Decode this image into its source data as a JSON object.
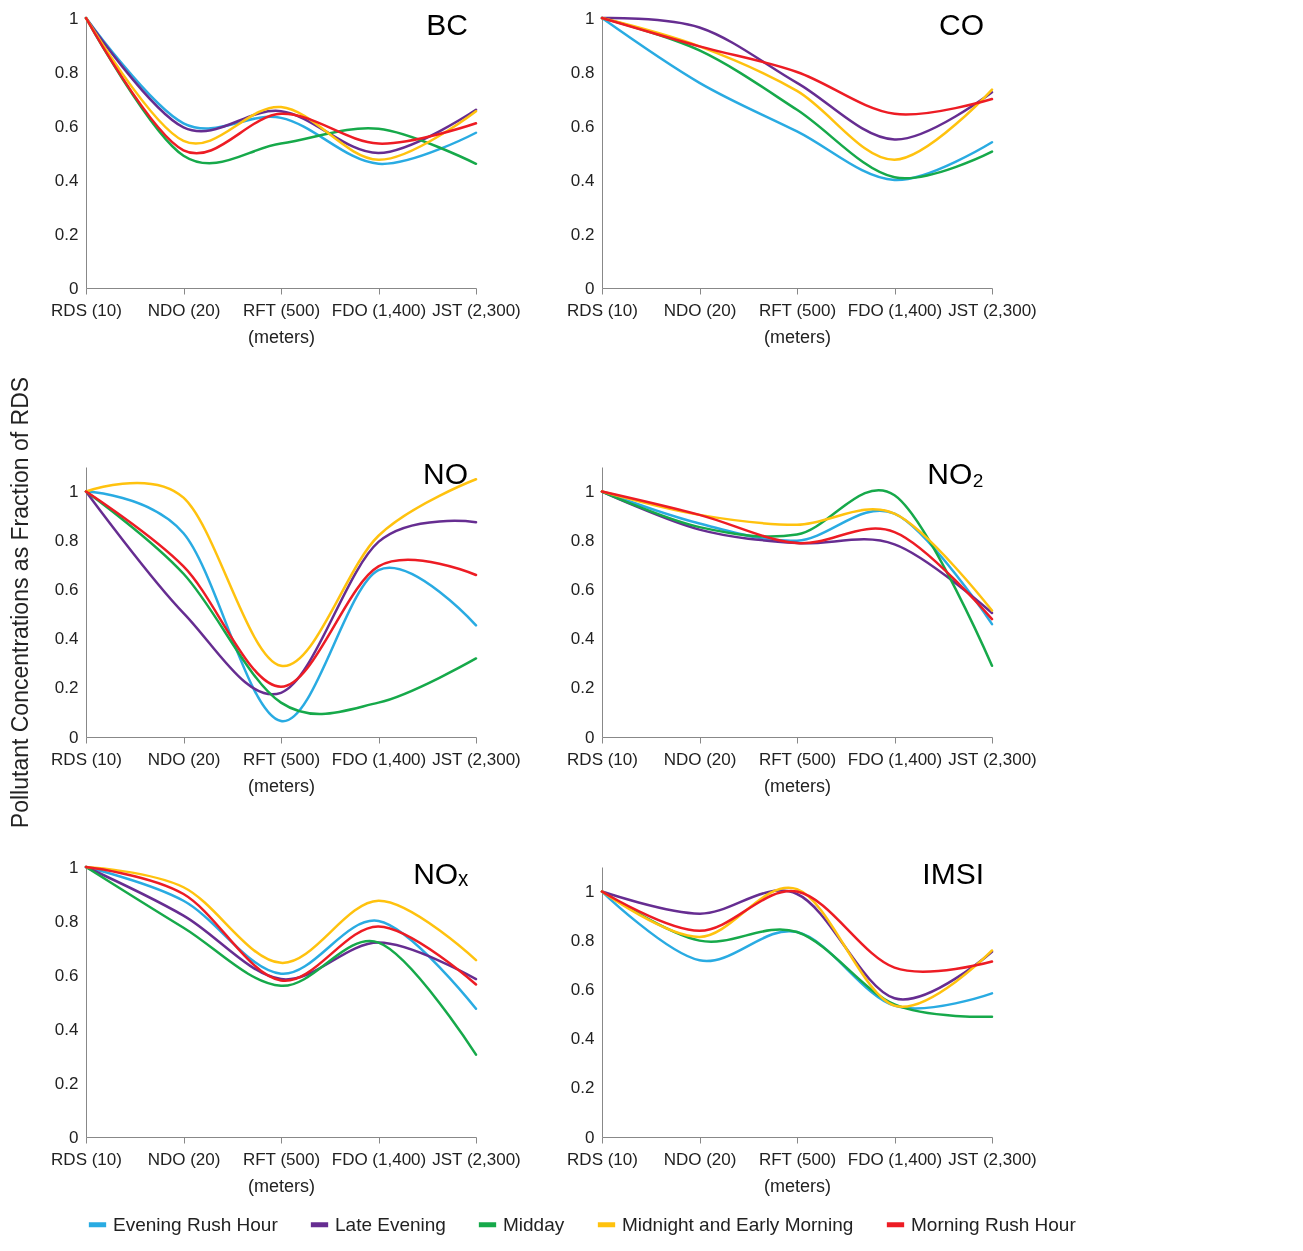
{
  "chart_data": [
    {
      "type": "line",
      "title": "BC",
      "xlabel": "(meters)",
      "categories": [
        "RDS (10)",
        "NDO (20)",
        "RFT (500)",
        "FDO (1,400)",
        "JST (2,300)"
      ],
      "ylim": [
        0,
        1
      ],
      "yticks": [
        0,
        0.2,
        0.4,
        0.6,
        0.8,
        1
      ],
      "grid": false,
      "legend": "bottom",
      "series": [
        {
          "name": "Evening Rush Hour",
          "color": "#29abe2",
          "values": [
            1,
            0.61,
            0.63,
            0.46,
            0.575
          ]
        },
        {
          "name": "Late Evening",
          "color": "#662d91",
          "values": [
            1,
            0.595,
            0.655,
            0.5,
            0.66
          ]
        },
        {
          "name": "Midday",
          "color": "#16a94a",
          "values": [
            1,
            0.49,
            0.535,
            0.59,
            0.46
          ]
        },
        {
          "name": "Midnight and Early Morning",
          "color": "#ffc20e",
          "values": [
            1,
            0.545,
            0.67,
            0.475,
            0.655
          ]
        },
        {
          "name": "Morning Rush Hour",
          "color": "#ed1c24",
          "values": [
            1,
            0.51,
            0.645,
            0.535,
            0.61
          ]
        }
      ]
    },
    {
      "type": "line",
      "title": "CO",
      "xlabel": "(meters)",
      "categories": [
        "RDS (10)",
        "NDO (20)",
        "RFT (500)",
        "FDO (1,400)",
        "JST (2,300)"
      ],
      "ylim": [
        0,
        1
      ],
      "yticks": [
        0,
        0.2,
        0.4,
        0.6,
        0.8,
        1
      ],
      "grid": false,
      "legend": "bottom",
      "series": [
        {
          "name": "Evening Rush Hour",
          "color": "#29abe2",
          "values": [
            1,
            0.76,
            0.58,
            0.4,
            0.54
          ]
        },
        {
          "name": "Late Evening",
          "color": "#662d91",
          "values": [
            1,
            0.965,
            0.76,
            0.55,
            0.725
          ]
        },
        {
          "name": "Midday",
          "color": "#16a94a",
          "values": [
            1,
            0.88,
            0.66,
            0.41,
            0.505
          ]
        },
        {
          "name": "Midnight and Early Morning",
          "color": "#ffc20e",
          "values": [
            1,
            0.895,
            0.73,
            0.475,
            0.735
          ]
        },
        {
          "name": "Morning Rush Hour",
          "color": "#ed1c24",
          "values": [
            1,
            0.895,
            0.8,
            0.645,
            0.7
          ]
        }
      ]
    },
    {
      "type": "line",
      "title": "NO",
      "xlabel": "(meters)",
      "ylabel": "Pollutant Concentrations as Fraction of RDS",
      "categories": [
        "RDS (10)",
        "NDO (20)",
        "RFT (500)",
        "FDO (1,400)",
        "JST (2,300)"
      ],
      "ylim": [
        0,
        1.1
      ],
      "yticks": [
        0,
        0.2,
        0.4,
        0.6,
        0.8,
        1
      ],
      "grid": false,
      "legend": "bottom",
      "series": [
        {
          "name": "Evening Rush Hour",
          "color": "#29abe2",
          "values": [
            1,
            0.83,
            0.065,
            0.68,
            0.455
          ]
        },
        {
          "name": "Late Evening",
          "color": "#662d91",
          "values": [
            1,
            0.505,
            0.18,
            0.795,
            0.875
          ]
        },
        {
          "name": "Midday",
          "color": "#16a94a",
          "values": [
            1,
            0.665,
            0.14,
            0.14,
            0.32
          ]
        },
        {
          "name": "Midnight and Early Morning",
          "color": "#ffc20e",
          "values": [
            1,
            0.975,
            0.29,
            0.82,
            1.05
          ]
        },
        {
          "name": "Morning Rush Hour",
          "color": "#ed1c24",
          "values": [
            1,
            0.695,
            0.205,
            0.695,
            0.66
          ]
        }
      ]
    },
    {
      "type": "line",
      "title": "NO₂",
      "xlabel": "(meters)",
      "categories": [
        "RDS (10)",
        "NDO (20)",
        "RFT (500)",
        "FDO (1,400)",
        "JST (2,300)"
      ],
      "ylim": [
        0,
        1.1
      ],
      "yticks": [
        0,
        0.2,
        0.4,
        0.6,
        0.8,
        1
      ],
      "grid": false,
      "legend": "bottom",
      "series": [
        {
          "name": "Evening Rush Hour",
          "color": "#29abe2",
          "values": [
            1,
            0.87,
            0.8,
            0.91,
            0.46
          ]
        },
        {
          "name": "Late Evening",
          "color": "#662d91",
          "values": [
            1,
            0.845,
            0.79,
            0.785,
            0.505
          ]
        },
        {
          "name": "Midday",
          "color": "#16a94a",
          "values": [
            1,
            0.855,
            0.825,
            0.985,
            0.29
          ]
        },
        {
          "name": "Midnight and Early Morning",
          "color": "#ffc20e",
          "values": [
            1,
            0.905,
            0.865,
            0.91,
            0.515
          ]
        },
        {
          "name": "Morning Rush Hour",
          "color": "#ed1c24",
          "values": [
            1,
            0.905,
            0.79,
            0.835,
            0.48
          ]
        }
      ]
    },
    {
      "type": "line",
      "title": "NOₓ",
      "xlabel": "(meters)",
      "categories": [
        "RDS (10)",
        "NDO (20)",
        "RFT (500)",
        "FDO (1,400)",
        "JST (2,300)"
      ],
      "ylim": [
        0,
        1
      ],
      "yticks": [
        0,
        0.2,
        0.4,
        0.6,
        0.8,
        1
      ],
      "grid": false,
      "legend": "bottom",
      "series": [
        {
          "name": "Evening Rush Hour",
          "color": "#29abe2",
          "values": [
            1,
            0.875,
            0.605,
            0.8,
            0.475
          ]
        },
        {
          "name": "Late Evening",
          "color": "#662d91",
          "values": [
            1,
            0.82,
            0.585,
            0.72,
            0.585
          ]
        },
        {
          "name": "Midday",
          "color": "#16a94a",
          "values": [
            1,
            0.775,
            0.56,
            0.72,
            0.305
          ]
        },
        {
          "name": "Midnight and Early Morning",
          "color": "#ffc20e",
          "values": [
            1,
            0.925,
            0.645,
            0.875,
            0.655
          ]
        },
        {
          "name": "Morning Rush Hour",
          "color": "#ed1c24",
          "values": [
            1,
            0.9,
            0.58,
            0.78,
            0.565
          ]
        }
      ]
    },
    {
      "type": "line",
      "title": "IMSI",
      "xlabel": "(meters)",
      "categories": [
        "RDS (10)",
        "NDO (20)",
        "RFT (500)",
        "FDO (1,400)",
        "JST (2,300)"
      ],
      "ylim": [
        0,
        1.1
      ],
      "yticks": [
        0,
        0.2,
        0.4,
        0.6,
        0.8,
        1
      ],
      "grid": false,
      "legend": "bottom",
      "series": [
        {
          "name": "Evening Rush Hour",
          "color": "#29abe2",
          "values": [
            1,
            0.72,
            0.835,
            0.535,
            0.585
          ]
        },
        {
          "name": "Late Evening",
          "color": "#662d91",
          "values": [
            1,
            0.91,
            0.99,
            0.565,
            0.755
          ]
        },
        {
          "name": "Midday",
          "color": "#16a94a",
          "values": [
            1,
            0.8,
            0.835,
            0.54,
            0.49
          ]
        },
        {
          "name": "Midnight and Early Morning",
          "color": "#ffc20e",
          "values": [
            1,
            0.815,
            1.01,
            0.535,
            0.76
          ]
        },
        {
          "name": "Morning Rush Hour",
          "color": "#ed1c24",
          "values": [
            1,
            0.84,
            1.0,
            0.69,
            0.715
          ]
        }
      ]
    }
  ]
}
